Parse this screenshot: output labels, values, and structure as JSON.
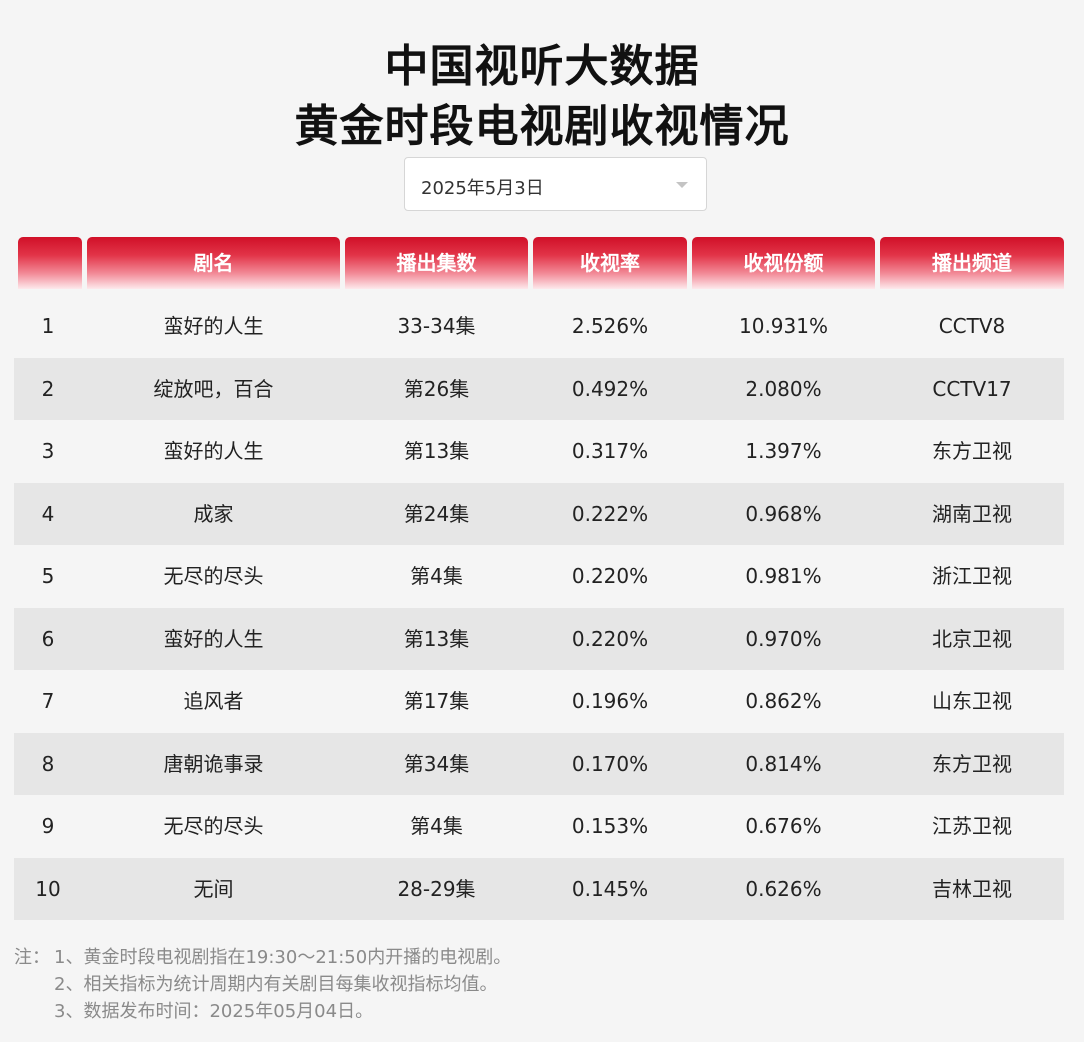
{
  "title_line1": "中国视听大数据",
  "title_line2": "黄金时段电视剧收视情况",
  "date_select": {
    "value": "2025年5月3日"
  },
  "table": {
    "headers": [
      "",
      "剧名",
      "播出集数",
      "收视率",
      "收视份额",
      "播出频道"
    ],
    "rows": [
      [
        "1",
        "蛮好的人生",
        "33-34集",
        "2.526%",
        "10.931%",
        "CCTV8"
      ],
      [
        "2",
        "绽放吧，百合",
        "第26集",
        "0.492%",
        "2.080%",
        "CCTV17"
      ],
      [
        "3",
        "蛮好的人生",
        "第13集",
        "0.317%",
        "1.397%",
        "东方卫视"
      ],
      [
        "4",
        "成家",
        "第24集",
        "0.222%",
        "0.968%",
        "湖南卫视"
      ],
      [
        "5",
        "无尽的尽头",
        "第4集",
        "0.220%",
        "0.981%",
        "浙江卫视"
      ],
      [
        "6",
        "蛮好的人生",
        "第13集",
        "0.220%",
        "0.970%",
        "北京卫视"
      ],
      [
        "7",
        "追风者",
        "第17集",
        "0.196%",
        "0.862%",
        "山东卫视"
      ],
      [
        "8",
        "唐朝诡事录",
        "第34集",
        "0.170%",
        "0.814%",
        "东方卫视"
      ],
      [
        "9",
        "无尽的尽头",
        "第4集",
        "0.153%",
        "0.676%",
        "江苏卫视"
      ],
      [
        "10",
        "无间",
        "28-29集",
        "0.145%",
        "0.626%",
        "吉林卫视"
      ]
    ]
  },
  "notes": {
    "prefix": "注：",
    "lines": [
      "1、黄金时段电视剧指在19:30～21:50内开播的电视剧。",
      "2、相关指标为统计周期内有关剧目每集收视指标均值。",
      "3、数据发布时间：2025年05月04日。"
    ]
  },
  "colors": {
    "header_top": "#d01028",
    "header_bottom": "#fde9ec",
    "page_bg": "#f5f5f5",
    "row_alt": "#e6e6e6",
    "note_text": "#8a8a8a"
  }
}
